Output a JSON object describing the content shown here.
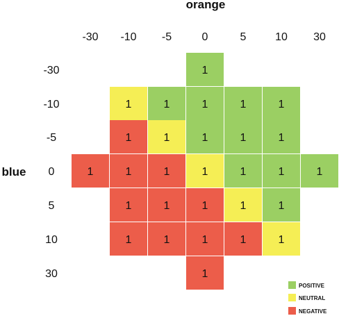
{
  "chart_data": {
    "type": "heatmap",
    "xlabel": "orange",
    "ylabel": "blue",
    "x_categories": [
      "-30",
      "-10",
      "-5",
      "0",
      "5",
      "10",
      "30"
    ],
    "y_categories": [
      "-30",
      "-10",
      "-5",
      "0",
      "5",
      "10",
      "30"
    ],
    "classes": [
      {
        "key": "positive",
        "label": "POSITIVE",
        "color": "#9bcf63"
      },
      {
        "key": "neutral",
        "label": "NEUTRAL",
        "color": "#f5ee55"
      },
      {
        "key": "negative",
        "label": "NEGATIVE",
        "color": "#ec5d4a"
      }
    ],
    "legend_position": "bottom-right",
    "cells": [
      {
        "x": "0",
        "y": "-30",
        "value": 1,
        "class": "positive"
      },
      {
        "x": "-10",
        "y": "-10",
        "value": 1,
        "class": "neutral"
      },
      {
        "x": "-5",
        "y": "-10",
        "value": 1,
        "class": "positive"
      },
      {
        "x": "0",
        "y": "-10",
        "value": 1,
        "class": "positive"
      },
      {
        "x": "5",
        "y": "-10",
        "value": 1,
        "class": "positive"
      },
      {
        "x": "10",
        "y": "-10",
        "value": 1,
        "class": "positive"
      },
      {
        "x": "-10",
        "y": "-5",
        "value": 1,
        "class": "negative"
      },
      {
        "x": "-5",
        "y": "-5",
        "value": 1,
        "class": "neutral"
      },
      {
        "x": "0",
        "y": "-5",
        "value": 1,
        "class": "positive"
      },
      {
        "x": "5",
        "y": "-5",
        "value": 1,
        "class": "positive"
      },
      {
        "x": "10",
        "y": "-5",
        "value": 1,
        "class": "positive"
      },
      {
        "x": "-30",
        "y": "0",
        "value": 1,
        "class": "negative"
      },
      {
        "x": "-10",
        "y": "0",
        "value": 1,
        "class": "negative"
      },
      {
        "x": "-5",
        "y": "0",
        "value": 1,
        "class": "negative"
      },
      {
        "x": "0",
        "y": "0",
        "value": 1,
        "class": "neutral"
      },
      {
        "x": "5",
        "y": "0",
        "value": 1,
        "class": "positive"
      },
      {
        "x": "10",
        "y": "0",
        "value": 1,
        "class": "positive"
      },
      {
        "x": "30",
        "y": "0",
        "value": 1,
        "class": "positive"
      },
      {
        "x": "-10",
        "y": "5",
        "value": 1,
        "class": "negative"
      },
      {
        "x": "-5",
        "y": "5",
        "value": 1,
        "class": "negative"
      },
      {
        "x": "0",
        "y": "5",
        "value": 1,
        "class": "negative"
      },
      {
        "x": "5",
        "y": "5",
        "value": 1,
        "class": "neutral"
      },
      {
        "x": "10",
        "y": "5",
        "value": 1,
        "class": "positive"
      },
      {
        "x": "-10",
        "y": "10",
        "value": 1,
        "class": "negative"
      },
      {
        "x": "-5",
        "y": "10",
        "value": 1,
        "class": "negative"
      },
      {
        "x": "0",
        "y": "10",
        "value": 1,
        "class": "negative"
      },
      {
        "x": "5",
        "y": "10",
        "value": 1,
        "class": "negative"
      },
      {
        "x": "10",
        "y": "10",
        "value": 1,
        "class": "neutral"
      },
      {
        "x": "0",
        "y": "30",
        "value": 1,
        "class": "negative"
      }
    ]
  }
}
